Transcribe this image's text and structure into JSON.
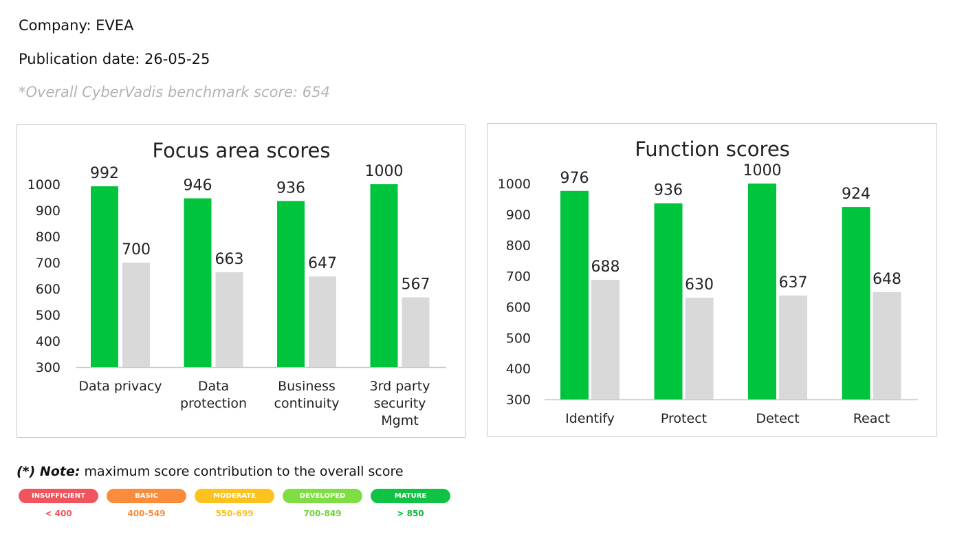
{
  "header": {
    "company": "Company: EVEA",
    "publication_date": "Publication date: 26-05-25",
    "benchmark": "*Overall CyberVadis benchmark score: 654"
  },
  "colors": {
    "company_bar": "#00c43c",
    "benchmark_bar": "#d9d9d9",
    "axis_line": "#c8c8c8",
    "title": "#333333"
  },
  "chart_data": [
    {
      "type": "bar",
      "title": "Focus area scores",
      "xlabel": "",
      "ylabel": "",
      "ylim": [
        300,
        1000
      ],
      "yticks": [
        1000,
        900,
        800,
        700,
        600,
        500,
        400,
        300
      ],
      "grid": false,
      "categories": [
        [
          "Data privacy"
        ],
        [
          "Data",
          "protection"
        ],
        [
          "Business",
          "continuity"
        ],
        [
          "3rd party",
          "security",
          "Mgmt"
        ]
      ],
      "series": [
        {
          "values": [
            992,
            946,
            936,
            1000
          ],
          "color": "#00c43c"
        },
        {
          "values": [
            700,
            663,
            647,
            567
          ],
          "color": "#d9d9d9"
        }
      ]
    },
    {
      "type": "bar",
      "title": "Function scores",
      "xlabel": "",
      "ylabel": "",
      "ylim": [
        300,
        1000
      ],
      "yticks": [
        1000,
        900,
        800,
        700,
        600,
        500,
        400,
        300
      ],
      "grid": false,
      "categories": [
        [
          "Identify"
        ],
        [
          "Protect"
        ],
        [
          "Detect"
        ],
        [
          "React"
        ]
      ],
      "series": [
        {
          "values": [
            976,
            936,
            1000,
            924
          ],
          "color": "#00c43c"
        },
        {
          "values": [
            688,
            630,
            637,
            648
          ],
          "color": "#d9d9d9"
        }
      ]
    }
  ],
  "note": {
    "prefix": "(*) Note:",
    "text": "maximum score contribution to the overall score"
  },
  "legend": [
    {
      "label": "INSUFFICIENT",
      "range": "< 400",
      "color": "#f0545c",
      "text_color": "#f0545c"
    },
    {
      "label": "BASIC",
      "range": "400-549",
      "color": "#fb8c3c",
      "text_color": "#fb8c3c"
    },
    {
      "label": "MODERATE",
      "range": "550-699",
      "color": "#fcc31e",
      "text_color": "#fcc31e"
    },
    {
      "label": "DEVELOPED",
      "range": "700-849",
      "color": "#7fde44",
      "text_color": "#6fd33a"
    },
    {
      "label": "MATURE",
      "range": "> 850",
      "color": "#11c244",
      "text_color": "#0fb63e"
    }
  ]
}
